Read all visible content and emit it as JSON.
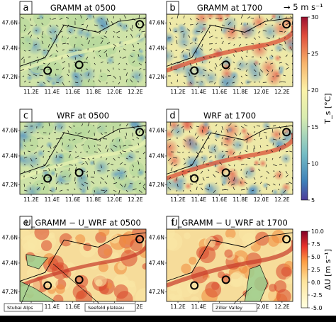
{
  "chart_data": {
    "type": "heatmap",
    "panels": [
      {
        "letter": "a",
        "title": "GRAMM at 0500"
      },
      {
        "letter": "b",
        "title": "GRAMM at 1700"
      },
      {
        "letter": "c",
        "title": "WRF at 0500"
      },
      {
        "letter": "d",
        "title": "WRF at 1700"
      },
      {
        "letter": "e",
        "title": "U_GRAMM − U_WRF at 0500"
      },
      {
        "letter": "f",
        "title": "U_GRAMM − U_WRF at 1700"
      }
    ],
    "x_ticks": [
      "11.2E",
      "11.4E",
      "11.6E",
      "11.8E",
      "12.0E",
      "12.2E"
    ],
    "y_ticks": [
      "47.6N",
      "47.4N",
      "47.2N"
    ],
    "wind_reference": "→ 5 m s⁻¹",
    "colorbar_top": {
      "label": "T_s [°C]",
      "min": 5,
      "max": 30,
      "ticks": [
        "30",
        "25",
        "20",
        "15",
        "10",
        "5"
      ],
      "colormap": "RdYlBu_r"
    },
    "colorbar_bottom": {
      "label": "ΔU [m s⁻¹]",
      "min": -5.0,
      "max": 10.0,
      "ticks": [
        "10.0",
        "7.5",
        "5.0",
        "2.5",
        "0.0",
        "-2.5",
        "-5.0"
      ],
      "colormap": "YlOrRd"
    },
    "annotations": [
      "Stubai Alps",
      "Seefeld plateau",
      "Ziller Valley"
    ]
  },
  "colors": {
    "warm": "#d7301f",
    "cool": "#4575b4",
    "mid": "#f7f7b4",
    "diff_low": "#ffffcc",
    "diff_high": "#800026",
    "region_fill": "#9ccf8f"
  }
}
